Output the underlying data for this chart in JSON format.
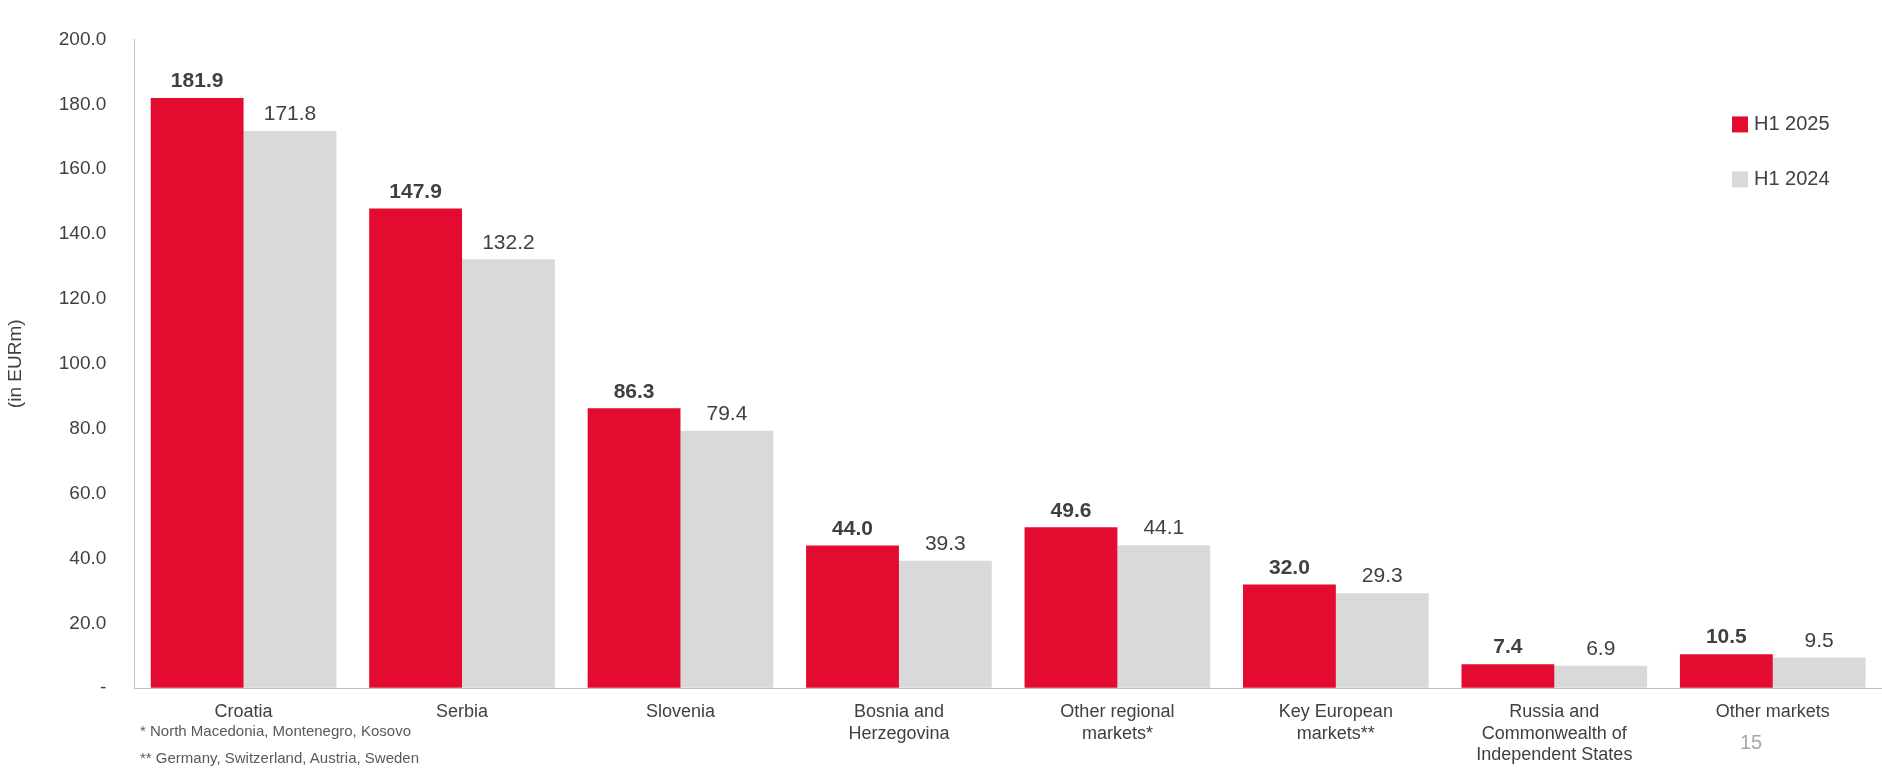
{
  "chart_data": {
    "type": "bar",
    "ylabel": "(in EURm)",
    "categories": [
      "Croatia",
      "Serbia",
      "Slovenia",
      "Bosnia and Herzegovina",
      "Other regional markets*",
      "Key European markets**",
      "Russia and Commonwealth of Independent States",
      "Other markets"
    ],
    "series": [
      {
        "name": "H1 2025",
        "color": "#e30b2f",
        "values": [
          181.9,
          147.9,
          86.3,
          44.0,
          49.6,
          32.0,
          7.4,
          10.5
        ],
        "value_labels": [
          "181.9",
          "147.9",
          "86.3",
          "44.0",
          "49.6",
          "32.0",
          "7.4",
          "10.5"
        ]
      },
      {
        "name": "H1 2024",
        "color": "#d9d9d9",
        "values": [
          171.8,
          132.2,
          79.4,
          39.3,
          44.1,
          29.3,
          6.9,
          9.5
        ],
        "value_labels": [
          "171.8",
          "132.2",
          "79.4",
          "39.3",
          "44.1",
          "29.3",
          "6.9",
          "9.5"
        ]
      }
    ],
    "ylim": [
      0,
      200
    ],
    "yticks": [
      {
        "value": 0,
        "label": "-"
      },
      {
        "value": 20,
        "label": "20.0"
      },
      {
        "value": 40,
        "label": "40.0"
      },
      {
        "value": 60,
        "label": "60.0"
      },
      {
        "value": 80,
        "label": "80.0"
      },
      {
        "value": 100,
        "label": "100.0"
      },
      {
        "value": 120,
        "label": "120.0"
      },
      {
        "value": 140,
        "label": "140.0"
      },
      {
        "value": 160,
        "label": "160.0"
      },
      {
        "value": 180,
        "label": "180.0"
      },
      {
        "value": 200,
        "label": "200.0"
      }
    ],
    "grid": false,
    "legend": "top right",
    "annotations": [
      "* North Macedonia, Montenegro, Kosovo",
      "** Germany, Switzerland, Austria, Sweden",
      "15"
    ]
  }
}
